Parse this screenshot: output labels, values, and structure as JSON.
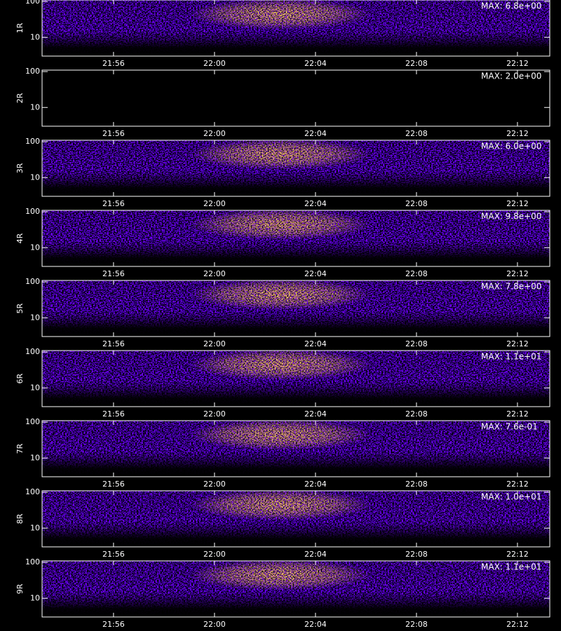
{
  "chart_data": [
    {
      "type": "heatmap",
      "ylabel": "1R",
      "annotation": "MAX: 6.8e+00",
      "yscale": "log",
      "ylim": [
        3,
        110
      ],
      "yticks": [
        10,
        100
      ],
      "xlim": [
        1313.17,
        1333.28
      ],
      "xticks": [
        {
          "value": 1316,
          "label": "21:56"
        },
        {
          "value": 1320,
          "label": "22:00"
        },
        {
          "value": 1324,
          "label": "22:04"
        },
        {
          "value": 1328,
          "label": "22:08"
        },
        {
          "value": 1332,
          "label": "22:12"
        }
      ]
    },
    {
      "type": "heatmap",
      "ylabel": "2R",
      "annotation": "MAX: 2.0e+00",
      "yscale": "log",
      "ylim": [
        3,
        110
      ],
      "yticks": [
        10,
        100
      ],
      "xlim": [
        1313.17,
        1333.28
      ],
      "xticks": [
        {
          "value": 1316,
          "label": "21:56"
        },
        {
          "value": 1320,
          "label": "22:00"
        },
        {
          "value": 1324,
          "label": "22:04"
        },
        {
          "value": 1328,
          "label": "22:08"
        },
        {
          "value": 1332,
          "label": "22:12"
        }
      ]
    },
    {
      "type": "heatmap",
      "ylabel": "3R",
      "annotation": "MAX: 6.0e+00",
      "yscale": "log",
      "ylim": [
        3,
        110
      ],
      "yticks": [
        10,
        100
      ],
      "xlim": [
        1313.17,
        1333.28
      ],
      "xticks": [
        {
          "value": 1316,
          "label": "21:56"
        },
        {
          "value": 1320,
          "label": "22:00"
        },
        {
          "value": 1324,
          "label": "22:04"
        },
        {
          "value": 1328,
          "label": "22:08"
        },
        {
          "value": 1332,
          "label": "22:12"
        }
      ]
    },
    {
      "type": "heatmap",
      "ylabel": "4R",
      "annotation": "MAX: 9.8e+00",
      "yscale": "log",
      "ylim": [
        3,
        110
      ],
      "yticks": [
        10,
        100
      ],
      "xlim": [
        1313.17,
        1333.28
      ],
      "xticks": [
        {
          "value": 1316,
          "label": "21:56"
        },
        {
          "value": 1320,
          "label": "22:00"
        },
        {
          "value": 1324,
          "label": "22:04"
        },
        {
          "value": 1328,
          "label": "22:08"
        },
        {
          "value": 1332,
          "label": "22:12"
        }
      ]
    },
    {
      "type": "heatmap",
      "ylabel": "5R",
      "annotation": "MAX: 7.8e+00",
      "yscale": "log",
      "ylim": [
        3,
        110
      ],
      "yticks": [
        10,
        100
      ],
      "xlim": [
        1313.17,
        1333.28
      ],
      "xticks": [
        {
          "value": 1316,
          "label": "21:56"
        },
        {
          "value": 1320,
          "label": "22:00"
        },
        {
          "value": 1324,
          "label": "22:04"
        },
        {
          "value": 1328,
          "label": "22:08"
        },
        {
          "value": 1332,
          "label": "22:12"
        }
      ]
    },
    {
      "type": "heatmap",
      "ylabel": "6R",
      "annotation": "MAX: 1.1e+01",
      "yscale": "log",
      "ylim": [
        3,
        110
      ],
      "yticks": [
        10,
        100
      ],
      "xlim": [
        1313.17,
        1333.28
      ],
      "xticks": [
        {
          "value": 1316,
          "label": "21:56"
        },
        {
          "value": 1320,
          "label": "22:00"
        },
        {
          "value": 1324,
          "label": "22:04"
        },
        {
          "value": 1328,
          "label": "22:08"
        },
        {
          "value": 1332,
          "label": "22:12"
        }
      ]
    },
    {
      "type": "heatmap",
      "ylabel": "7R",
      "annotation": "MAX: 7.6e-01",
      "yscale": "log",
      "ylim": [
        3,
        110
      ],
      "yticks": [
        10,
        100
      ],
      "xlim": [
        1313.17,
        1333.28
      ],
      "xticks": [
        {
          "value": 1316,
          "label": "21:56"
        },
        {
          "value": 1320,
          "label": "22:00"
        },
        {
          "value": 1324,
          "label": "22:04"
        },
        {
          "value": 1328,
          "label": "22:08"
        },
        {
          "value": 1332,
          "label": "22:12"
        }
      ]
    },
    {
      "type": "heatmap",
      "ylabel": "8R",
      "annotation": "MAX: 1.0e+01",
      "yscale": "log",
      "ylim": [
        3,
        110
      ],
      "yticks": [
        10,
        100
      ],
      "xlim": [
        1313.17,
        1333.28
      ],
      "xticks": [
        {
          "value": 1316,
          "label": "21:56"
        },
        {
          "value": 1320,
          "label": "22:00"
        },
        {
          "value": 1324,
          "label": "22:04"
        },
        {
          "value": 1328,
          "label": "22:08"
        },
        {
          "value": 1332,
          "label": "22:12"
        }
      ]
    },
    {
      "type": "heatmap",
      "ylabel": "9R",
      "annotation": "MAX: 1.1e+01",
      "yscale": "log",
      "ylim": [
        3,
        110
      ],
      "yticks": [
        10,
        100
      ],
      "xlim": [
        1313.17,
        1333.28
      ],
      "xticks": [
        {
          "value": 1316,
          "label": "21:56"
        },
        {
          "value": 1320,
          "label": "22:00"
        },
        {
          "value": 1324,
          "label": "22:04"
        },
        {
          "value": 1328,
          "label": "22:08"
        },
        {
          "value": 1332,
          "label": "22:12"
        }
      ]
    }
  ]
}
